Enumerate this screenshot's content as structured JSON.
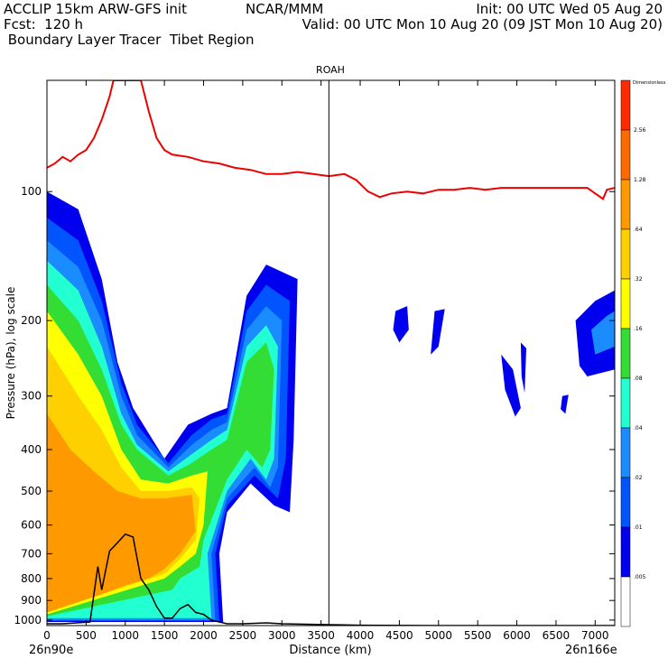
{
  "header": {
    "line1_left": "ACCLIP 15km ARW-GFS init",
    "line2_left": "Fcst:  120 h",
    "line3_left": " Boundary Layer Tracer  Tibet Region",
    "line1_mid": "NCAR/MMM",
    "line1_right": "Init: 00 UTC Wed 05 Aug 20",
    "line2_right": "Valid: 00 UTC Mon 10 Aug 20 (09 JST Mon 10 Aug 20)"
  },
  "chart_data": {
    "type": "contour-filled cross-section",
    "title": "ROAH",
    "xlabel": "Distance (km)",
    "ylabel": "Pressure (hPa), log scale",
    "xlim": [
      0,
      7250
    ],
    "ylim": [
      1030,
      55
    ],
    "y_scale": "log",
    "x_ticks": [
      0,
      500,
      1000,
      1500,
      2000,
      2500,
      3000,
      3500,
      4000,
      4500,
      5000,
      5500,
      6000,
      6500,
      7000
    ],
    "y_ticks": [
      100,
      200,
      300,
      400,
      500,
      600,
      700,
      800,
      900,
      1000
    ],
    "x_endpoint_labels": [
      "26n90e",
      "26n166e"
    ],
    "marker_line_x": 3600,
    "colorbar": {
      "top_label": "Dimensionless",
      "levels": [
        "2.56",
        "1.28",
        ".64",
        ".32",
        ".16",
        ".08",
        ".04",
        ".02",
        ".01",
        ".005"
      ],
      "colors": [
        "#ff2a00",
        "#ff6a00",
        "#ff9900",
        "#ffd000",
        "#ffff00",
        "#33dd33",
        "#22ffd0",
        "#1a8cff",
        "#0055ff",
        "#0000ee",
        "#ffffff"
      ]
    },
    "tropopause_line": {
      "color": "#ee0000",
      "points": [
        [
          0,
          88
        ],
        [
          100,
          86
        ],
        [
          200,
          83
        ],
        [
          300,
          85
        ],
        [
          400,
          82
        ],
        [
          500,
          80
        ],
        [
          600,
          75
        ],
        [
          700,
          68
        ],
        [
          800,
          60
        ],
        [
          850,
          55
        ],
        [
          1200,
          55
        ],
        [
          1300,
          65
        ],
        [
          1400,
          75
        ],
        [
          1500,
          80
        ],
        [
          1600,
          82
        ],
        [
          1800,
          83
        ],
        [
          2000,
          85
        ],
        [
          2200,
          86
        ],
        [
          2400,
          88
        ],
        [
          2600,
          89
        ],
        [
          2800,
          91
        ],
        [
          3000,
          91
        ],
        [
          3200,
          90
        ],
        [
          3400,
          91
        ],
        [
          3600,
          92
        ],
        [
          3800,
          91
        ],
        [
          3950,
          94
        ],
        [
          4100,
          100
        ],
        [
          4250,
          103
        ],
        [
          4400,
          101
        ],
        [
          4600,
          100
        ],
        [
          4800,
          101
        ],
        [
          5000,
          99
        ],
        [
          5200,
          99
        ],
        [
          5400,
          98
        ],
        [
          5600,
          99
        ],
        [
          5800,
          98
        ],
        [
          6000,
          98
        ],
        [
          6300,
          98
        ],
        [
          6600,
          98
        ],
        [
          6900,
          98
        ],
        [
          7000,
          101
        ],
        [
          7100,
          104
        ],
        [
          7150,
          99
        ],
        [
          7250,
          98
        ]
      ]
    },
    "terrain_line": {
      "color": "#000000",
      "points": [
        [
          0,
          1020
        ],
        [
          200,
          1020
        ],
        [
          550,
          1010
        ],
        [
          650,
          750
        ],
        [
          700,
          850
        ],
        [
          800,
          690
        ],
        [
          900,
          660
        ],
        [
          1000,
          630
        ],
        [
          1100,
          640
        ],
        [
          1200,
          800
        ],
        [
          1300,
          850
        ],
        [
          1400,
          930
        ],
        [
          1500,
          990
        ],
        [
          1600,
          990
        ],
        [
          1700,
          940
        ],
        [
          1800,
          920
        ],
        [
          1900,
          960
        ],
        [
          2000,
          970
        ],
        [
          2100,
          1000
        ],
        [
          2200,
          1010
        ],
        [
          2300,
          1020
        ],
        [
          2500,
          1020
        ],
        [
          2800,
          1015
        ],
        [
          3000,
          1020
        ],
        [
          3600,
          1025
        ],
        [
          4000,
          1028
        ],
        [
          5000,
          1030
        ],
        [
          7250,
          1030
        ]
      ]
    },
    "series": [
      {
        "name": ".01",
        "level_index": 8,
        "color": "#0000ee",
        "values": [
          [
            0,
            100
          ],
          [
            400,
            110
          ],
          [
            700,
            160
          ],
          [
            900,
            250
          ],
          [
            1100,
            320
          ],
          [
            1500,
            420
          ],
          [
            1800,
            350
          ],
          [
            2100,
            330
          ],
          [
            2300,
            320
          ],
          [
            2550,
            175
          ],
          [
            2800,
            148
          ],
          [
            3200,
            160
          ],
          [
            3150,
            380
          ],
          [
            3100,
            560
          ],
          [
            2900,
            540
          ],
          [
            2600,
            480
          ],
          [
            2300,
            560
          ],
          [
            2200,
            700
          ],
          [
            2250,
            1010
          ],
          [
            0,
            1010
          ]
        ]
      },
      {
        "name": ".02",
        "level_index": 7,
        "color": "#0055ff",
        "values": [
          [
            0,
            115
          ],
          [
            400,
            130
          ],
          [
            700,
            180
          ],
          [
            950,
            280
          ],
          [
            1150,
            350
          ],
          [
            1550,
            430
          ],
          [
            1850,
            370
          ],
          [
            2100,
            340
          ],
          [
            2300,
            330
          ],
          [
            2550,
            190
          ],
          [
            2800,
            165
          ],
          [
            3100,
            180
          ],
          [
            3050,
            420
          ],
          [
            2950,
            520
          ],
          [
            2650,
            460
          ],
          [
            2300,
            540
          ],
          [
            2150,
            700
          ],
          [
            2200,
            1005
          ],
          [
            0,
            1005
          ]
        ]
      },
      {
        "name": ".04",
        "level_index": 6,
        "color": "#1a8cff",
        "values": [
          [
            0,
            130
          ],
          [
            400,
            150
          ],
          [
            700,
            200
          ],
          [
            950,
            300
          ],
          [
            1150,
            370
          ],
          [
            1550,
            440
          ],
          [
            1850,
            390
          ],
          [
            2100,
            360
          ],
          [
            2300,
            345
          ],
          [
            2550,
            210
          ],
          [
            2800,
            185
          ],
          [
            3000,
            200
          ],
          [
            2950,
            440
          ],
          [
            2850,
            490
          ],
          [
            2650,
            440
          ],
          [
            2300,
            520
          ],
          [
            2100,
            700
          ],
          [
            2150,
            1000
          ],
          [
            0,
            1000
          ]
        ]
      },
      {
        "name": ".08",
        "level_index": 5,
        "color": "#22ffd0",
        "values": [
          [
            0,
            145
          ],
          [
            400,
            170
          ],
          [
            700,
            230
          ],
          [
            950,
            330
          ],
          [
            1150,
            390
          ],
          [
            1550,
            450
          ],
          [
            1850,
            410
          ],
          [
            2100,
            380
          ],
          [
            2300,
            360
          ],
          [
            2550,
            230
          ],
          [
            2800,
            205
          ],
          [
            2950,
            230
          ],
          [
            2900,
            420
          ],
          [
            2800,
            470
          ],
          [
            2600,
            420
          ],
          [
            2300,
            500
          ],
          [
            2050,
            700
          ],
          [
            2100,
            990
          ],
          [
            0,
            990
          ]
        ]
      },
      {
        "name": ".16",
        "level_index": 4,
        "color": "#33dd33",
        "values": [
          [
            0,
            165
          ],
          [
            400,
            200
          ],
          [
            700,
            260
          ],
          [
            950,
            350
          ],
          [
            1150,
            400
          ],
          [
            1550,
            460
          ],
          [
            1850,
            430
          ],
          [
            2100,
            400
          ],
          [
            2300,
            380
          ],
          [
            2550,
            250
          ],
          [
            2800,
            225
          ],
          [
            2900,
            260
          ],
          [
            2850,
            400
          ],
          [
            2750,
            440
          ],
          [
            2550,
            400
          ],
          [
            2300,
            470
          ],
          [
            2000,
            650
          ],
          [
            1950,
            750
          ],
          [
            1700,
            800
          ],
          [
            1600,
            850
          ],
          [
            0,
            980
          ]
        ]
      },
      {
        "name": ".32",
        "level_index": 3,
        "color": "#ffff00",
        "values": [
          [
            0,
            190
          ],
          [
            400,
            240
          ],
          [
            700,
            300
          ],
          [
            950,
            400
          ],
          [
            1200,
            470
          ],
          [
            1550,
            480
          ],
          [
            1850,
            460
          ],
          [
            2050,
            450
          ],
          [
            2000,
            600
          ],
          [
            1900,
            700
          ],
          [
            1700,
            750
          ],
          [
            1500,
            800
          ],
          [
            0,
            970
          ]
        ]
      },
      {
        "name": ".64",
        "level_index": 2,
        "color": "#ffd000",
        "values": [
          [
            0,
            230
          ],
          [
            400,
            300
          ],
          [
            700,
            360
          ],
          [
            950,
            440
          ],
          [
            1200,
            500
          ],
          [
            1550,
            500
          ],
          [
            1850,
            490
          ],
          [
            1950,
            520
          ],
          [
            1900,
            650
          ],
          [
            1700,
            720
          ],
          [
            1500,
            780
          ],
          [
            0,
            960
          ]
        ]
      },
      {
        "name": "1.28",
        "level_index": 1,
        "color": "#ff9900",
        "values": [
          [
            0,
            330
          ],
          [
            300,
            400
          ],
          [
            600,
            450
          ],
          [
            900,
            500
          ],
          [
            1200,
            520
          ],
          [
            1500,
            520
          ],
          [
            1850,
            510
          ],
          [
            1900,
            620
          ],
          [
            1700,
            700
          ],
          [
            1500,
            760
          ],
          [
            1300,
            800
          ],
          [
            1000,
            830
          ],
          [
            700,
            870
          ],
          [
            0,
            960
          ]
        ]
      }
    ],
    "isolated_blobs": [
      {
        "color": "#0000ee",
        "values": [
          [
            4450,
            190
          ],
          [
            4600,
            185
          ],
          [
            4620,
            210
          ],
          [
            4500,
            225
          ],
          [
            4420,
            210
          ]
        ]
      },
      {
        "color": "#0000ee",
        "values": [
          [
            4950,
            190
          ],
          [
            5080,
            188
          ],
          [
            5000,
            230
          ],
          [
            4900,
            240
          ]
        ]
      },
      {
        "color": "#0000ee",
        "values": [
          [
            5800,
            240
          ],
          [
            5950,
            260
          ],
          [
            6050,
            320
          ],
          [
            5980,
            335
          ],
          [
            5850,
            290
          ]
        ]
      },
      {
        "color": "#0000ee",
        "values": [
          [
            6050,
            225
          ],
          [
            6120,
            232
          ],
          [
            6100,
            295
          ],
          [
            6060,
            270
          ]
        ]
      },
      {
        "color": "#0000ee",
        "values": [
          [
            6580,
            300
          ],
          [
            6660,
            298
          ],
          [
            6620,
            330
          ],
          [
            6560,
            322
          ]
        ]
      },
      {
        "color": "#0000ee",
        "values": [
          [
            6750,
            200
          ],
          [
            7000,
            180
          ],
          [
            7250,
            170
          ],
          [
            7250,
            260
          ],
          [
            6900,
            270
          ],
          [
            6800,
            255
          ]
        ]
      },
      {
        "color": "#1a8cff",
        "values": [
          [
            6950,
            210
          ],
          [
            7150,
            195
          ],
          [
            7250,
            190
          ],
          [
            7250,
            230
          ],
          [
            7000,
            240
          ]
        ]
      }
    ]
  }
}
